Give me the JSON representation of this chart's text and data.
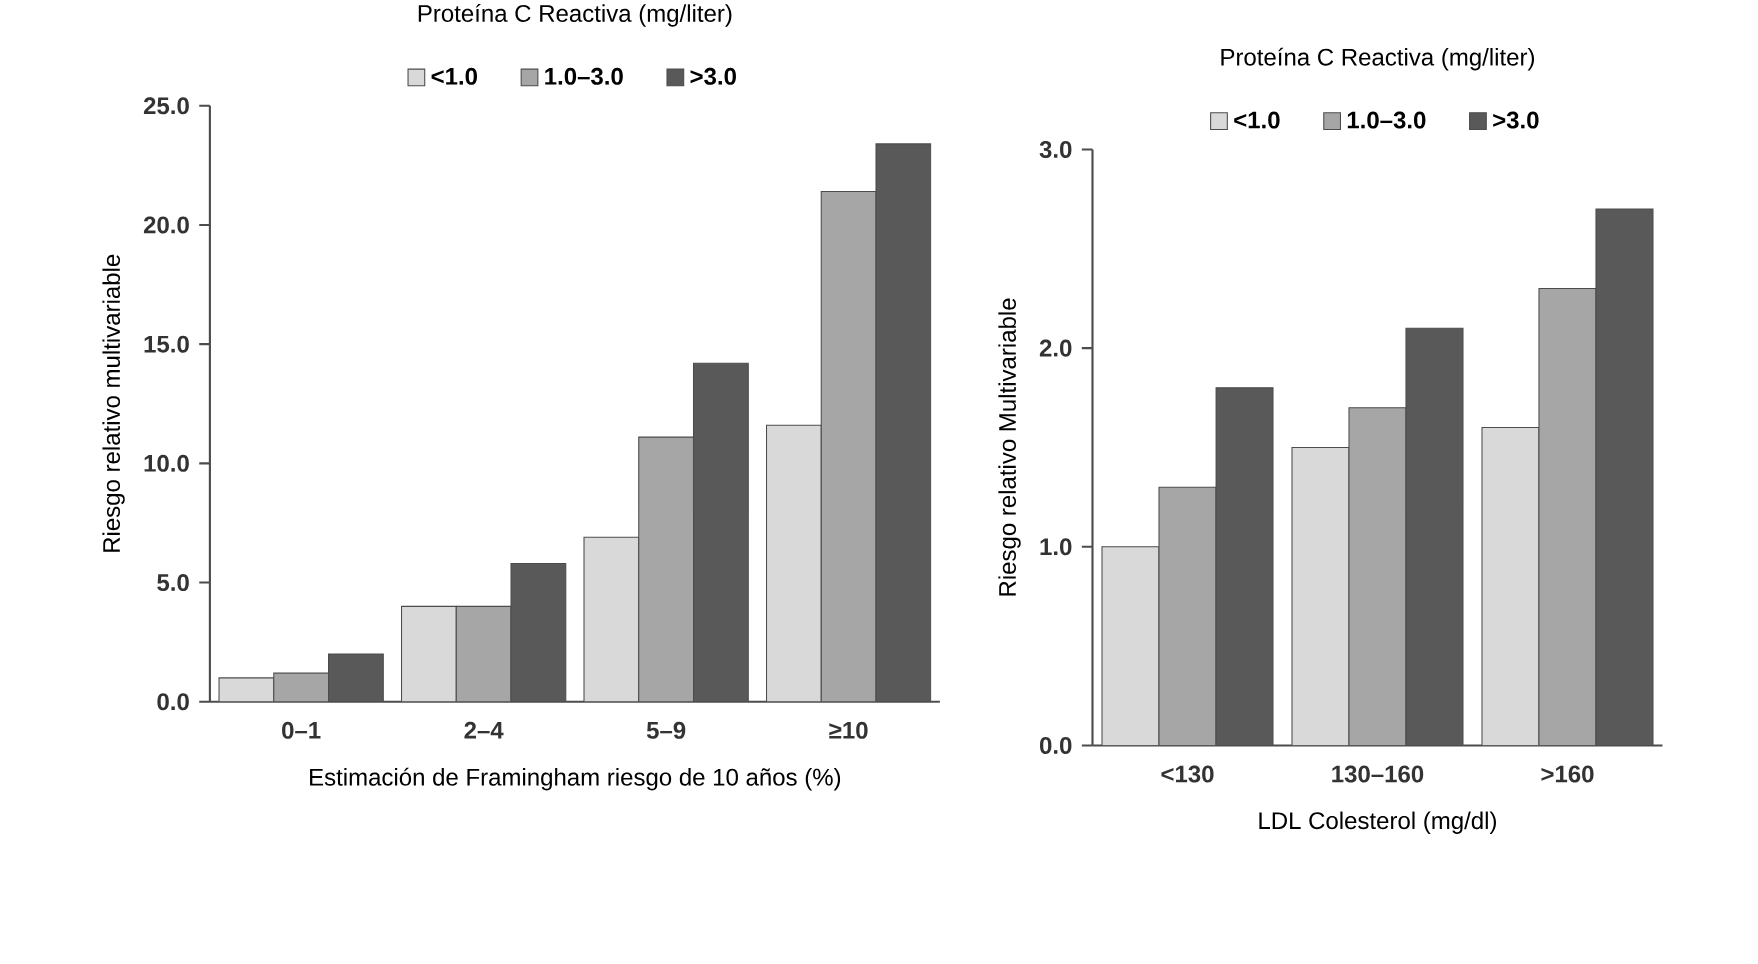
{
  "chart_data": [
    {
      "type": "bar",
      "legend_title": "Proteína C Reactiva (mg/liter)",
      "xlabel": "Estimación de Framingham riesgo de 10 años (%)",
      "ylabel": "Riesgo relativo multivariable",
      "categories": [
        "0–1",
        "2–4",
        "5–9",
        "≥10"
      ],
      "series": [
        {
          "name": "<1.0",
          "color": "#d9d9d9",
          "values": [
            1.0,
            4.0,
            6.9,
            11.6
          ]
        },
        {
          "name": "1.0–3.0",
          "color": "#a6a6a6",
          "values": [
            1.2,
            4.0,
            11.1,
            21.4
          ]
        },
        {
          "name": ">3.0",
          "color": "#595959",
          "values": [
            2.0,
            5.8,
            14.2,
            23.4
          ]
        }
      ],
      "ylim": [
        0,
        25
      ],
      "yticks": [
        {
          "value": 0,
          "label": "0.0"
        },
        {
          "value": 5,
          "label": "5.0"
        },
        {
          "value": 10,
          "label": "10.0"
        },
        {
          "value": 15,
          "label": "15.0"
        },
        {
          "value": 20,
          "label": "20.0"
        },
        {
          "value": 25,
          "label": "25.0"
        }
      ],
      "legend": "top"
    },
    {
      "type": "bar",
      "legend_title": "Proteína C Reactiva (mg/liter)",
      "xlabel": "LDL Colesterol (mg/dl)",
      "ylabel": "Riesgo relativo Multivariable",
      "categories": [
        "<130",
        "130–160",
        ">160"
      ],
      "series": [
        {
          "name": "<1.0",
          "color": "#d9d9d9",
          "values": [
            1.0,
            1.5,
            1.6
          ]
        },
        {
          "name": "1.0–3.0",
          "color": "#a6a6a6",
          "values": [
            1.3,
            1.7,
            2.3
          ]
        },
        {
          "name": ">3.0",
          "color": "#595959",
          "values": [
            1.8,
            2.1,
            2.7
          ]
        }
      ],
      "ylim": [
        0,
        3
      ],
      "yticks": [
        {
          "value": 0,
          "label": "0.0"
        },
        {
          "value": 1,
          "label": "1.0"
        },
        {
          "value": 2,
          "label": "2.0"
        },
        {
          "value": 3,
          "label": "3.0"
        }
      ],
      "legend": "top"
    }
  ]
}
